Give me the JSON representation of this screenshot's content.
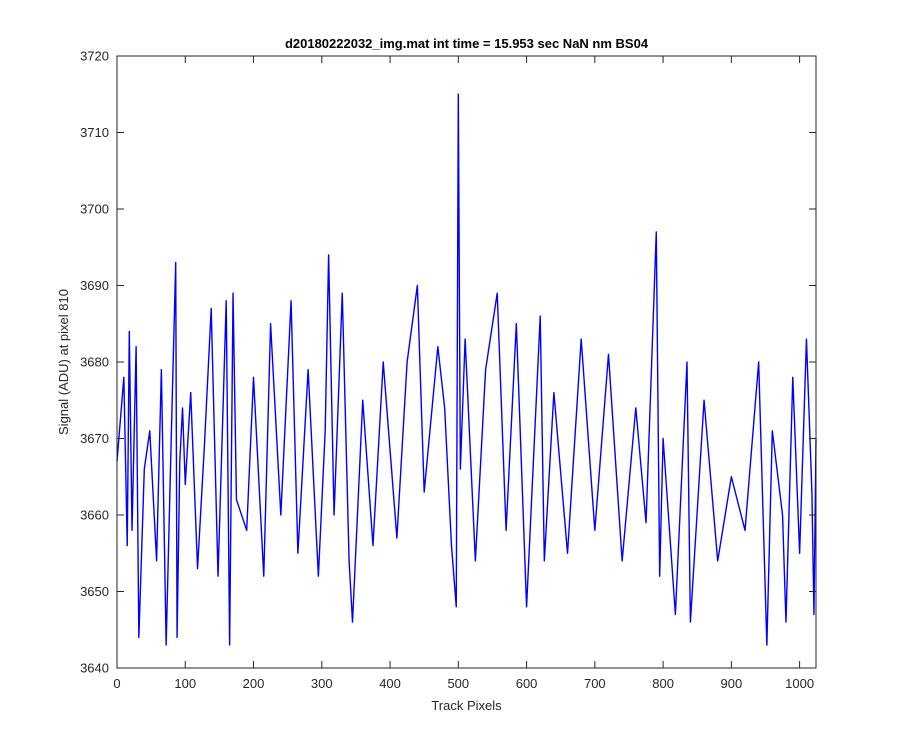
{
  "chart_data": {
    "type": "line",
    "title": "d20180222032_img.mat int time = 15.953 sec  NaN nm BS04",
    "xlabel": "Track Pixels",
    "ylabel": "Signal (ADU) at pixel 810",
    "xlim": [
      0,
      1024
    ],
    "ylim": [
      3640,
      3720
    ],
    "xticks": [
      "0",
      "100",
      "200",
      "300",
      "400",
      "500",
      "600",
      "700",
      "800",
      "900",
      "1000"
    ],
    "yticks": [
      "3640",
      "3650",
      "3660",
      "3670",
      "3680",
      "3690",
      "3700",
      "3710",
      "3720"
    ],
    "grid": false,
    "legend": "none",
    "series": [
      {
        "color": "#0000ff",
        "x": [
          0,
          10,
          15,
          18,
          22,
          28,
          32,
          40,
          48,
          58,
          65,
          72,
          80,
          86,
          88,
          92,
          96,
          100,
          108,
          118,
          128,
          138,
          148,
          160,
          165,
          170,
          175,
          190,
          200,
          215,
          225,
          240,
          255,
          265,
          280,
          295,
          305,
          310,
          318,
          330,
          340,
          345,
          360,
          375,
          390,
          410,
          425,
          440,
          450,
          470,
          480,
          490,
          497,
          500,
          503,
          510,
          525,
          540,
          557,
          570,
          585,
          600,
          620,
          626,
          640,
          660,
          680,
          700,
          720,
          740,
          760,
          775,
          790,
          795,
          800,
          818,
          835,
          840,
          860,
          880,
          900,
          920,
          940,
          952,
          960,
          975,
          980,
          990,
          1000,
          1010,
          1018,
          1021,
          1024
        ],
        "y": [
          3667,
          3678,
          3656,
          3684,
          3658,
          3682,
          3644,
          3666,
          3671,
          3654,
          3679,
          3643,
          3672,
          3693,
          3644,
          3667,
          3674,
          3664,
          3676,
          3653,
          3669,
          3687,
          3652,
          3688,
          3643,
          3689,
          3662,
          3658,
          3678,
          3652,
          3685,
          3660,
          3688,
          3655,
          3679,
          3652,
          3671,
          3694,
          3660,
          3689,
          3654,
          3646,
          3675,
          3656,
          3680,
          3657,
          3680,
          3690,
          3663,
          3682,
          3674,
          3656,
          3648,
          3715,
          3666,
          3683,
          3654,
          3679,
          3689,
          3658,
          3685,
          3648,
          3686,
          3654,
          3676,
          3655,
          3683,
          3658,
          3681,
          3654,
          3674,
          3659,
          3697,
          3652,
          3670,
          3647,
          3680,
          3646,
          3675,
          3654,
          3665,
          3658,
          3680,
          3643,
          3671,
          3660,
          3646,
          3678,
          3655,
          3683,
          3663,
          3647,
          3670
        ]
      }
    ]
  }
}
